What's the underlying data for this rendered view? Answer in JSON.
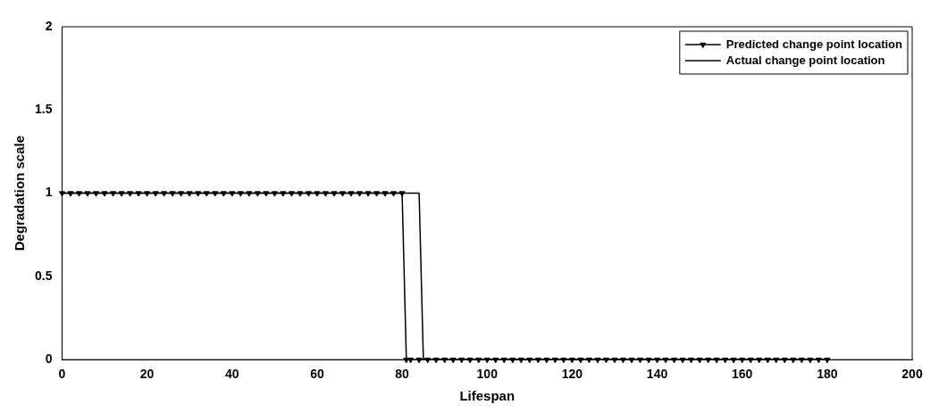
{
  "chart_data": {
    "type": "line",
    "xlabel": "Lifespan",
    "ylabel": "Degradation scale",
    "xlim": [
      0,
      200
    ],
    "xticks": [
      0,
      20,
      40,
      60,
      80,
      100,
      120,
      140,
      160,
      180,
      200
    ],
    "ylim": [
      0,
      2
    ],
    "yticks": [
      0,
      0.5,
      1,
      1.5,
      2
    ],
    "grid": false,
    "legend": "top right",
    "series": [
      {
        "name": "Predicted change point location",
        "color": "#000000",
        "marker": "triangle",
        "x": [
          0,
          2,
          4,
          6,
          8,
          10,
          12,
          14,
          16,
          18,
          20,
          22,
          24,
          26,
          28,
          30,
          32,
          34,
          36,
          38,
          40,
          42,
          44,
          46,
          48,
          50,
          52,
          54,
          56,
          58,
          60,
          62,
          64,
          66,
          68,
          70,
          72,
          74,
          76,
          78,
          80,
          81,
          82,
          84,
          86,
          88,
          90,
          92,
          94,
          96,
          98,
          100,
          102,
          104,
          106,
          108,
          110,
          112,
          114,
          116,
          118,
          120,
          122,
          124,
          126,
          128,
          130,
          132,
          134,
          136,
          138,
          140,
          142,
          144,
          146,
          148,
          150,
          152,
          154,
          156,
          158,
          160,
          162,
          164,
          166,
          168,
          170,
          172,
          174,
          176,
          178,
          180
        ],
        "values": [
          1,
          1,
          1,
          1,
          1,
          1,
          1,
          1,
          1,
          1,
          1,
          1,
          1,
          1,
          1,
          1,
          1,
          1,
          1,
          1,
          1,
          1,
          1,
          1,
          1,
          1,
          1,
          1,
          1,
          1,
          1,
          1,
          1,
          1,
          1,
          1,
          1,
          1,
          1,
          1,
          1,
          0,
          0,
          0,
          0,
          0,
          0,
          0,
          0,
          0,
          0,
          0,
          0,
          0,
          0,
          0,
          0,
          0,
          0,
          0,
          0,
          0,
          0,
          0,
          0,
          0,
          0,
          0,
          0,
          0,
          0,
          0,
          0,
          0,
          0,
          0,
          0,
          0,
          0,
          0,
          0,
          0,
          0,
          0,
          0,
          0,
          0,
          0,
          0,
          0,
          0,
          0
        ]
      },
      {
        "name": "Actual change point location",
        "color": "#000000",
        "marker": "none",
        "x": [
          0,
          84,
          85,
          180
        ],
        "values": [
          1,
          1,
          0,
          0
        ]
      }
    ]
  }
}
